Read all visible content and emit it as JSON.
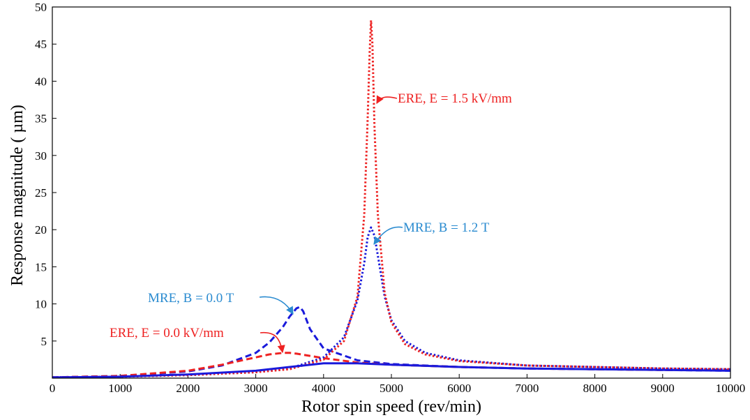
{
  "chart_data": {
    "type": "line",
    "title": "",
    "xlabel": "Rotor spin speed (rev/min)",
    "ylabel": "Response magnitude (  µm)",
    "xlim": [
      0,
      10000
    ],
    "ylim": [
      0,
      50
    ],
    "x_ticks": [
      "0",
      "1000",
      "2000",
      "3000",
      "4000",
      "5000",
      "6000",
      "7000",
      "8000",
      "9000",
      "10000"
    ],
    "y_ticks": [
      "5",
      "10",
      "15",
      "20",
      "25",
      "30",
      "35",
      "40",
      "45",
      "50"
    ],
    "grid": false,
    "legend": "none",
    "series": [
      {
        "key": "mre_b0",
        "color": "#1a1adb",
        "style": "dashed",
        "x": [
          0,
          1000,
          2000,
          2500,
          3000,
          3200,
          3400,
          3500,
          3600,
          3650,
          3700,
          3800,
          4000,
          4500,
          5000,
          6000,
          7000,
          8000,
          9000,
          10000
        ],
        "y": [
          0.1,
          0.3,
          0.9,
          1.7,
          3.4,
          4.8,
          6.9,
          8.3,
          9.4,
          9.6,
          9.0,
          6.6,
          4.0,
          2.4,
          1.9,
          1.5,
          1.3,
          1.2,
          1.1,
          1.0
        ]
      },
      {
        "key": "ere_e0",
        "color": "#ee2222",
        "style": "dashed",
        "x": [
          0,
          1000,
          2000,
          2500,
          3000,
          3200,
          3400,
          3500,
          3600,
          3800,
          4000,
          4500,
          5000,
          6000,
          7000,
          8000,
          9000,
          10000
        ],
        "y": [
          0.1,
          0.3,
          1.0,
          1.8,
          2.8,
          3.2,
          3.4,
          3.4,
          3.3,
          3.0,
          2.7,
          2.1,
          1.8,
          1.5,
          1.3,
          1.2,
          1.1,
          1.1
        ]
      },
      {
        "key": "mre_b12",
        "color": "#1a1adb",
        "style": "dotted",
        "x": [
          0,
          1000,
          2000,
          3000,
          3500,
          4000,
          4300,
          4500,
          4600,
          4650,
          4700,
          4750,
          4800,
          4900,
          5000,
          5200,
          5500,
          6000,
          7000,
          8000,
          9000,
          10000
        ],
        "y": [
          0.1,
          0.2,
          0.4,
          0.8,
          1.3,
          2.8,
          5.5,
          10.5,
          15.5,
          19.0,
          20.3,
          19.2,
          16.5,
          11.0,
          7.8,
          5.0,
          3.4,
          2.4,
          1.7,
          1.5,
          1.3,
          1.2
        ]
      },
      {
        "key": "ere_e15",
        "color": "#ee2222",
        "style": "dotted",
        "x": [
          0,
          1000,
          2000,
          3000,
          3500,
          4000,
          4300,
          4500,
          4600,
          4650,
          4680,
          4700,
          4720,
          4750,
          4800,
          4900,
          5000,
          5200,
          5500,
          6000,
          7000,
          8000,
          9000,
          10000
        ],
        "y": [
          0.1,
          0.2,
          0.4,
          0.8,
          1.2,
          2.5,
          5.0,
          11.0,
          22.0,
          35.0,
          44.0,
          48.2,
          45.0,
          34.0,
          22.0,
          11.5,
          7.5,
          4.6,
          3.2,
          2.3,
          1.7,
          1.5,
          1.3,
          1.2
        ]
      },
      {
        "key": "solid_blue",
        "color": "#1a1adb",
        "style": "solid",
        "x": [
          0,
          1000,
          2000,
          3000,
          3500,
          4000,
          4500,
          5000,
          6000,
          7000,
          8000,
          9000,
          10000
        ],
        "y": [
          0.1,
          0.2,
          0.5,
          1.0,
          1.5,
          2.0,
          2.0,
          1.8,
          1.5,
          1.3,
          1.2,
          1.1,
          1.0
        ]
      }
    ],
    "annotations": [
      {
        "text": "ERE, E = 1.5 kV/mm",
        "color": "#ee2222"
      },
      {
        "text": "MRE, B = 1.2 T",
        "color": "#2a8bd0"
      },
      {
        "text": "MRE, B = 0.0 T",
        "color": "#2a8bd0"
      },
      {
        "text": "ERE, E = 0.0 kV/mm",
        "color": "#ee2222"
      }
    ]
  }
}
